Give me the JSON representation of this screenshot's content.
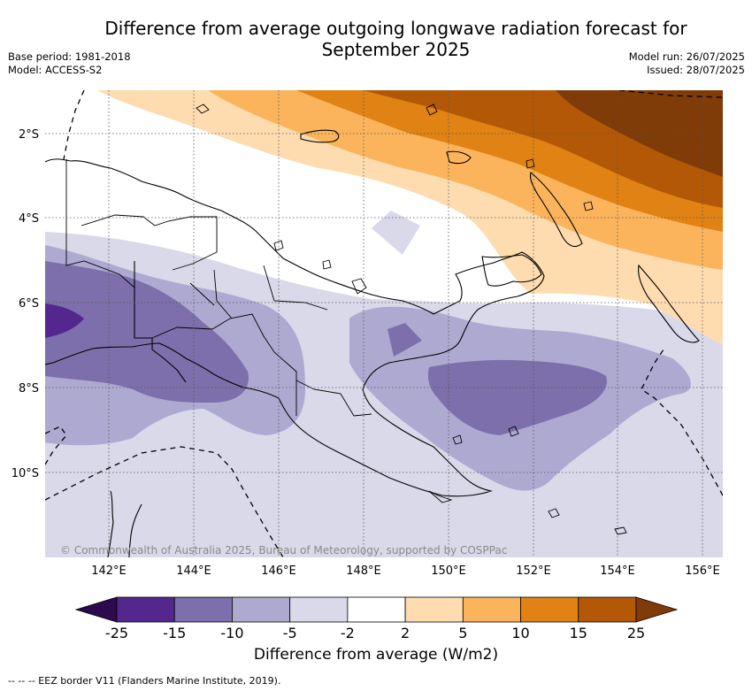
{
  "title_line1": "Difference from average outgoing longwave radiation forecast for",
  "title_line2": "September 2025",
  "base_period": "Base period: 1981-2018",
  "model": "Model: ACCESS-S2",
  "model_run": "Model run: 26/07/2025",
  "issued": "Issued: 28/07/2025",
  "copyright": "© Commonwealth of Australia 2025, Bureau of Meteorology, supported by COSPPac",
  "lat_labels": [
    "2°S",
    "4°S",
    "6°S",
    "8°S",
    "10°S"
  ],
  "lon_labels": [
    "142°E",
    "144°E",
    "146°E",
    "148°E",
    "150°E",
    "152°E",
    "154°E",
    "156°E"
  ],
  "colorbar": {
    "title": "Difference from average (W/m2)",
    "tick_labels": [
      "-25",
      "-15",
      "-10",
      "-5",
      "-2",
      "2",
      "5",
      "10",
      "15",
      "25"
    ],
    "colors": [
      "#2d0a4e",
      "#54278f",
      "#7c6fab",
      "#aea9d1",
      "#d9d9ea",
      "#ffffff",
      "#fedcb0",
      "#fbb45c",
      "#e08214",
      "#b35806",
      "#7f3b08"
    ]
  },
  "footer": "--  --  -- EEZ border V11 (Flanders Marine Institute, 2019)."
}
